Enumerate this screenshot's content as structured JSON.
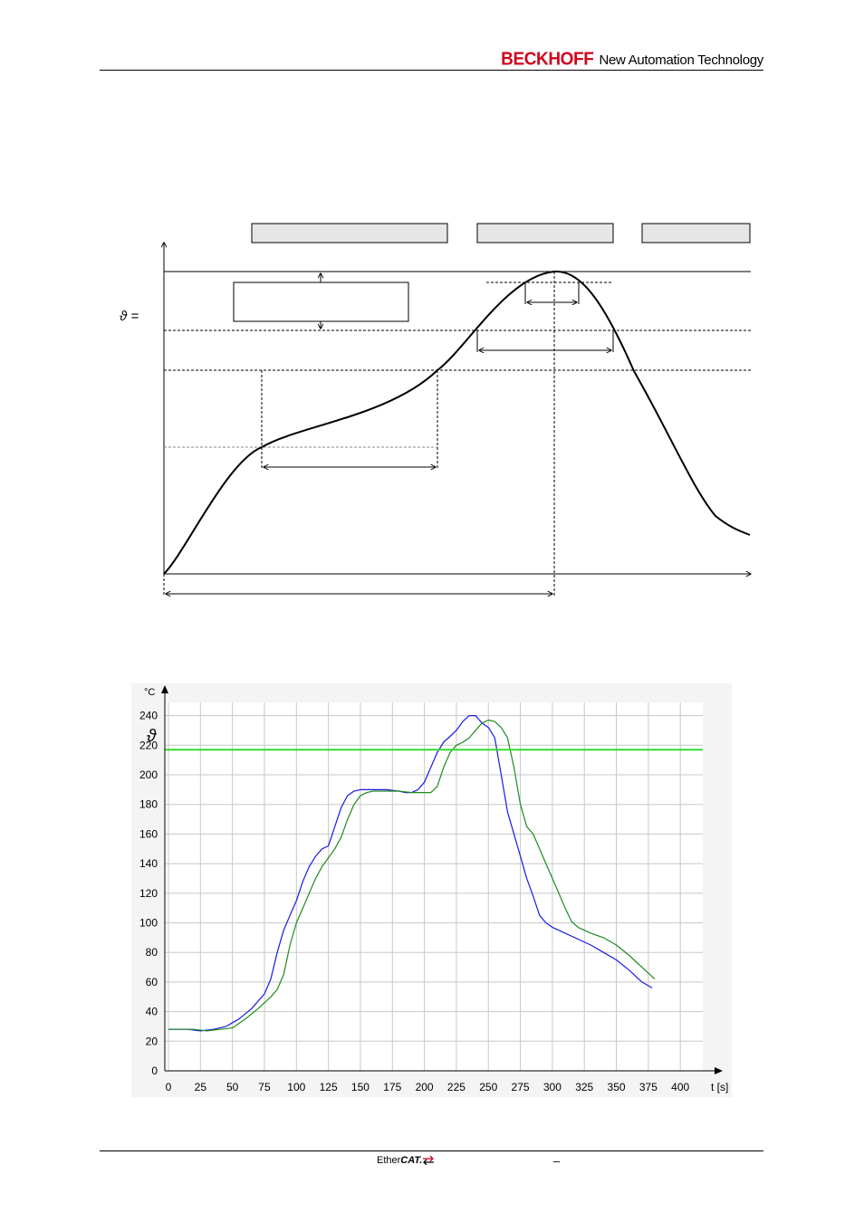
{
  "header": {
    "brand_name": "BECKHOFF",
    "tagline": "New Automation Technology",
    "brand_color": "#d0021b"
  },
  "profile_diagram": {
    "theta_label": "ϑ  ="
  },
  "chart_data": {
    "type": "line",
    "title": "",
    "xlabel": "t [s]",
    "ylabel": "°C",
    "xlim": [
      0,
      400
    ],
    "ylim": [
      0,
      240
    ],
    "x_ticks": [
      0,
      25,
      50,
      75,
      100,
      125,
      150,
      175,
      200,
      225,
      250,
      275,
      300,
      325,
      350,
      375,
      400
    ],
    "y_ticks": [
      0,
      20,
      40,
      60,
      80,
      100,
      120,
      140,
      160,
      180,
      200,
      220,
      240
    ],
    "grid": true,
    "threshold_line": {
      "value": 217,
      "color": "#33dd33"
    },
    "theta_marker": "ϑ",
    "series": [
      {
        "color": "#1a1ae6",
        "points": [
          [
            0,
            28
          ],
          [
            15,
            28
          ],
          [
            25,
            27
          ],
          [
            35,
            28
          ],
          [
            45,
            30
          ],
          [
            55,
            35
          ],
          [
            65,
            42
          ],
          [
            75,
            52
          ],
          [
            80,
            62
          ],
          [
            85,
            80
          ],
          [
            90,
            95
          ],
          [
            95,
            105
          ],
          [
            100,
            115
          ],
          [
            105,
            128
          ],
          [
            110,
            138
          ],
          [
            115,
            145
          ],
          [
            120,
            150
          ],
          [
            125,
            152
          ],
          [
            130,
            165
          ],
          [
            135,
            178
          ],
          [
            140,
            186
          ],
          [
            145,
            189
          ],
          [
            150,
            190
          ],
          [
            160,
            190
          ],
          [
            170,
            190
          ],
          [
            180,
            189
          ],
          [
            185,
            188
          ],
          [
            190,
            188
          ],
          [
            195,
            190
          ],
          [
            200,
            195
          ],
          [
            205,
            205
          ],
          [
            210,
            215
          ],
          [
            215,
            222
          ],
          [
            220,
            226
          ],
          [
            225,
            230
          ],
          [
            230,
            236
          ],
          [
            235,
            240
          ],
          [
            240,
            240
          ],
          [
            245,
            235
          ],
          [
            250,
            232
          ],
          [
            255,
            225
          ],
          [
            260,
            200
          ],
          [
            265,
            175
          ],
          [
            270,
            160
          ],
          [
            275,
            145
          ],
          [
            280,
            130
          ],
          [
            285,
            118
          ],
          [
            290,
            105
          ],
          [
            295,
            100
          ],
          [
            300,
            97
          ],
          [
            310,
            93
          ],
          [
            320,
            89
          ],
          [
            330,
            85
          ],
          [
            340,
            80
          ],
          [
            350,
            75
          ],
          [
            360,
            68
          ],
          [
            370,
            60
          ],
          [
            378,
            56
          ]
        ]
      },
      {
        "color": "#1e8a1e",
        "points": [
          [
            0,
            28
          ],
          [
            20,
            28
          ],
          [
            30,
            27
          ],
          [
            40,
            28
          ],
          [
            50,
            29
          ],
          [
            60,
            35
          ],
          [
            70,
            42
          ],
          [
            80,
            50
          ],
          [
            85,
            55
          ],
          [
            90,
            65
          ],
          [
            95,
            85
          ],
          [
            100,
            100
          ],
          [
            105,
            110
          ],
          [
            110,
            120
          ],
          [
            115,
            130
          ],
          [
            120,
            138
          ],
          [
            125,
            144
          ],
          [
            130,
            150
          ],
          [
            135,
            158
          ],
          [
            140,
            170
          ],
          [
            145,
            180
          ],
          [
            150,
            186
          ],
          [
            155,
            188
          ],
          [
            160,
            189
          ],
          [
            170,
            189
          ],
          [
            180,
            189
          ],
          [
            190,
            188
          ],
          [
            200,
            188
          ],
          [
            205,
            188
          ],
          [
            210,
            192
          ],
          [
            215,
            205
          ],
          [
            220,
            215
          ],
          [
            225,
            220
          ],
          [
            230,
            222
          ],
          [
            235,
            225
          ],
          [
            240,
            230
          ],
          [
            245,
            235
          ],
          [
            250,
            237
          ],
          [
            255,
            236
          ],
          [
            260,
            232
          ],
          [
            265,
            225
          ],
          [
            270,
            205
          ],
          [
            275,
            180
          ],
          [
            280,
            165
          ],
          [
            285,
            160
          ],
          [
            290,
            150
          ],
          [
            295,
            140
          ],
          [
            300,
            130
          ],
          [
            305,
            120
          ],
          [
            310,
            110
          ],
          [
            315,
            101
          ],
          [
            320,
            97
          ],
          [
            330,
            93
          ],
          [
            340,
            90
          ],
          [
            350,
            85
          ],
          [
            360,
            78
          ],
          [
            370,
            70
          ],
          [
            380,
            62
          ]
        ]
      }
    ]
  },
  "footer": {
    "logo_ether": "Ether",
    "logo_cat": "CAT.",
    "dash": "–"
  }
}
